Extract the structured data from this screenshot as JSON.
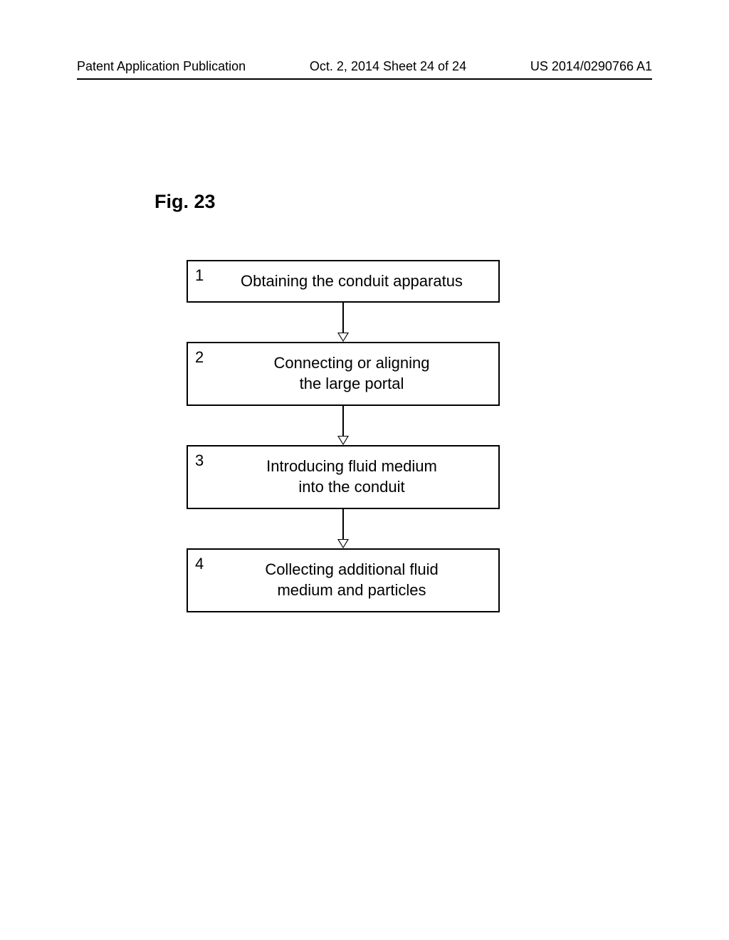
{
  "header": {
    "left": "Patent Application Publication",
    "center": "Oct. 2, 2014  Sheet 24 of 24",
    "right": "US 2014/0290766 A1"
  },
  "figure_label": "Fig. 23",
  "flowchart": {
    "type": "flowchart",
    "background_color": "#ffffff",
    "border_color": "#000000",
    "text_color": "#000000",
    "node_fontsize": 22,
    "label_fontsize": 27,
    "nodes": [
      {
        "id": 1,
        "number": "1",
        "text": "Obtaining the conduit apparatus",
        "lines": 1
      },
      {
        "id": 2,
        "number": "2",
        "text_line1": "Connecting or aligning",
        "text_line2": "the large portal",
        "lines": 2
      },
      {
        "id": 3,
        "number": "3",
        "text_line1": "Introducing fluid medium",
        "text_line2": "into the conduit",
        "lines": 2
      },
      {
        "id": 4,
        "number": "4",
        "text_line1": "Collecting additional fluid",
        "text_line2": "medium and particles",
        "lines": 2
      }
    ],
    "edges": [
      {
        "from": 1,
        "to": 2
      },
      {
        "from": 2,
        "to": 3
      },
      {
        "from": 3,
        "to": 4
      }
    ]
  }
}
